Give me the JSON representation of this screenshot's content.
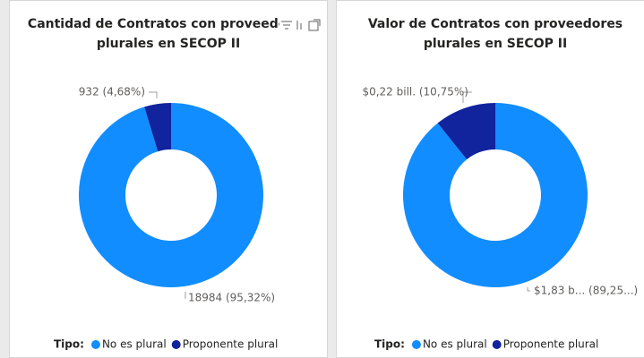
{
  "chart_data": [
    {
      "type": "donut",
      "title": "Cantidad de Contratos con proveedores plurales en SECOP II",
      "legend_title": "Tipo:",
      "categories": [
        "No es plural",
        "Proponente plural"
      ],
      "colors": [
        "#118dff",
        "#12239e"
      ],
      "values": [
        18984,
        932
      ],
      "value_labels": [
        "18984 (95,32%)",
        "932 (4,68%)"
      ]
    },
    {
      "type": "donut",
      "title": "Valor de Contratos con proveedores plurales en SECOP II",
      "legend_title": "Tipo:",
      "categories": [
        "No es plural",
        "Proponente plural"
      ],
      "colors": [
        "#118dff",
        "#12239e"
      ],
      "values": [
        1.83,
        0.22
      ],
      "value_labels": [
        "$1,83 b... (89,25...)",
        "$0,22 bill. (10,75%)"
      ]
    }
  ]
}
